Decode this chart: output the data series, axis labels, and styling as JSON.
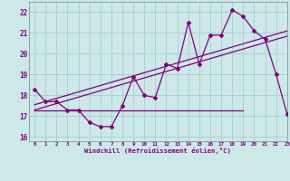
{
  "hours": [
    0,
    1,
    2,
    3,
    4,
    5,
    6,
    7,
    8,
    9,
    10,
    11,
    12,
    13,
    14,
    15,
    16,
    17,
    18,
    19,
    20,
    21,
    22,
    23
  ],
  "main_curve": [
    18.3,
    17.7,
    17.7,
    17.3,
    17.3,
    16.7,
    16.5,
    16.5,
    17.5,
    18.9,
    18.0,
    17.9,
    19.5,
    19.3,
    21.5,
    19.5,
    20.9,
    20.9,
    22.1,
    21.8,
    21.1,
    20.7,
    19.0,
    17.1
  ],
  "trend_line_1": [
    [
      0,
      17.55
    ],
    [
      23,
      21.1
    ]
  ],
  "trend_line_2": [
    [
      0,
      17.3
    ],
    [
      23,
      20.85
    ]
  ],
  "min_line": [
    [
      0,
      17.3
    ],
    [
      19,
      17.3
    ]
  ],
  "bg_color": "#cce8e8",
  "grid_color": "#aacccc",
  "line_color": "#800080",
  "ylim": [
    15.8,
    22.5
  ],
  "xlim": [
    -0.5,
    23
  ],
  "yticks": [
    16,
    17,
    18,
    19,
    20,
    21,
    22
  ],
  "xticks": [
    0,
    1,
    2,
    3,
    4,
    5,
    6,
    7,
    8,
    9,
    10,
    11,
    12,
    13,
    14,
    15,
    16,
    17,
    18,
    19,
    20,
    21,
    22,
    23
  ],
  "xlabel": "Windchill (Refroidissement éolien,°C)"
}
